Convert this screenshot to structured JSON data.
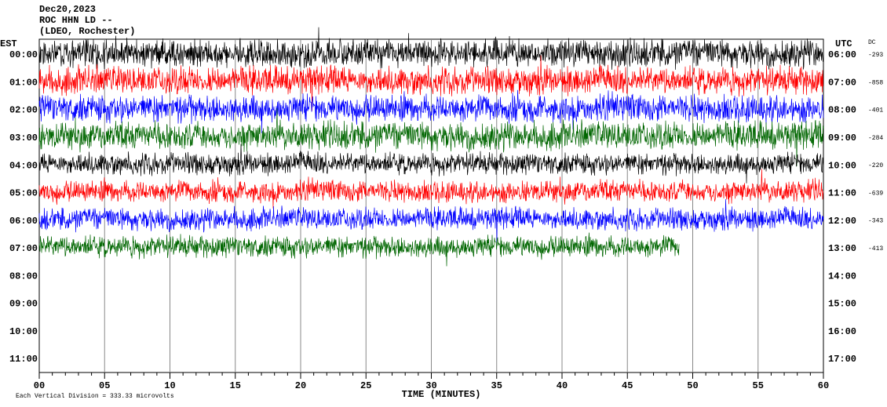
{
  "header": {
    "lines": [
      "Dec20,2023",
      "ROC HHN LD --",
      "(LDEO, Rochester)"
    ]
  },
  "left_axis": {
    "label": "EST",
    "ticks": [
      "00:00",
      "01:00",
      "02:00",
      "03:00",
      "04:00",
      "05:00",
      "06:00",
      "07:00",
      "08:00",
      "09:00",
      "10:00",
      "11:00"
    ]
  },
  "right_axis": {
    "label": "UTC",
    "ticks": [
      "06:00",
      "07:00",
      "08:00",
      "09:00",
      "10:00",
      "11:00",
      "12:00",
      "13:00",
      "14:00",
      "15:00",
      "16:00",
      "17:00"
    ]
  },
  "dc": {
    "label": "DC",
    "values": [
      "-293",
      "-858",
      "-401",
      "-284",
      "-220",
      "-639",
      "-343",
      "-413"
    ]
  },
  "x_axis": {
    "label": "TIME (MINUTES)",
    "ticks": [
      "00",
      "05",
      "10",
      "15",
      "20",
      "25",
      "30",
      "35",
      "40",
      "45",
      "50",
      "55",
      "60"
    ]
  },
  "footer": {
    "text": "Each Vertical Division = 333.33 microvolts"
  }
}
